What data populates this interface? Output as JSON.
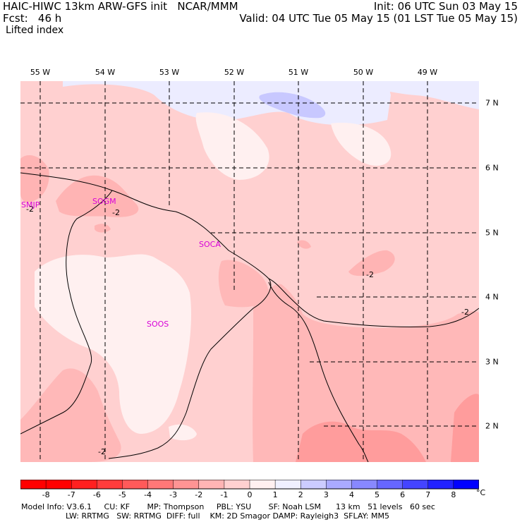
{
  "header": {
    "left_line1": "HAIC-HIWC 13km ARW-GFS init   NCAR/MMM",
    "left_line2": "Fcst:   46 h",
    "field": "Lifted index",
    "init": "Init: 06 UTC Sun 03 May 15",
    "valid": "Valid: 04 UTC Tue 05 May 15 (01 LST Tue 05 May 15)"
  },
  "map": {
    "lon_labels": [
      "55 W",
      "54 W",
      "53 W",
      "52 W",
      "51 W",
      "50 W",
      "49 W"
    ],
    "lat_labels": [
      "7 N",
      "6 N",
      "5 N",
      "4 N",
      "3 N",
      "2 N"
    ],
    "stations": [
      {
        "id": "SMJP"
      },
      {
        "id": "SOGM"
      },
      {
        "id": "SOCA"
      },
      {
        "id": "SOOS"
      }
    ],
    "contour_labels": [
      "-2",
      "-2",
      "-2",
      "-2",
      "-2"
    ],
    "colors": {
      "water_light": "#ffd0d0",
      "land_mid": "#ffb8b8",
      "deep": "#ff9c9c",
      "pale": "#fff0f0",
      "blue_faint": "#ececff",
      "blue": "#c8c8ff",
      "grid": "#000000"
    }
  },
  "legend": {
    "unit": "°C",
    "ticks": [
      "-8",
      "-7",
      "-6",
      "-5",
      "-4",
      "-3",
      "-2",
      "-1",
      "0",
      "1",
      "2",
      "3",
      "4",
      "5",
      "6",
      "7",
      "8"
    ],
    "colors": [
      "#ff0000",
      "#ff2020",
      "#ff3c3c",
      "#ff5a5a",
      "#ff7878",
      "#ff9494",
      "#ffb4b4",
      "#ffd0d0",
      "#fff0f0",
      "#f0f0ff",
      "#ccccff",
      "#aaaaff",
      "#8888ff",
      "#6666ff",
      "#4444ff",
      "#2222ff",
      "#0000ff"
    ]
  },
  "footer": {
    "line1": "Model Info: V3.6.1     CU: KF       MP: Thompson     PBL: YSU       SF: Noah LSM      13 km   51 levels   60 sec",
    "line2": "                  LW: RRTMG   SW: RRTMG  DIFF: full    KM: 2D Smagor DAMP: Rayleigh3  SFLAY: MM5"
  }
}
